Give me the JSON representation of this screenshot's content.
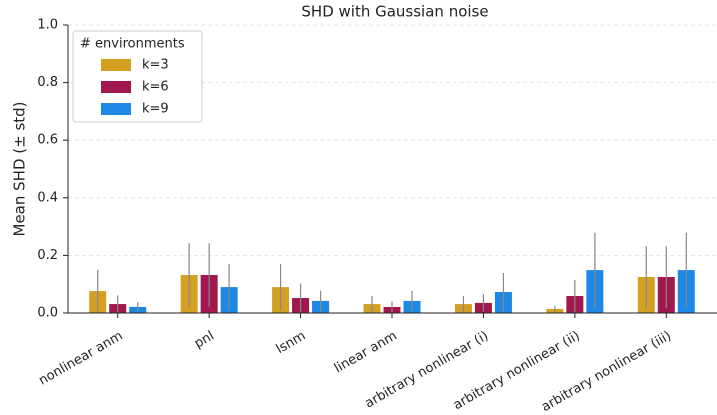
{
  "chart_data": {
    "type": "bar",
    "title": "SHD with Gaussian noise",
    "ylabel": "Mean SHD (± std)",
    "legend_title": "# environments",
    "legend": "upper left",
    "grid": true,
    "categories": [
      "nonlinear anm",
      "pnl",
      "lsnm",
      "linear anm",
      "arbitrary nonlinear (i)",
      "arbitrary nonlinear (ii)",
      "arbitrary nonlinear (iii)"
    ],
    "series": [
      {
        "name": "k=3",
        "color": "#d4a024",
        "values": [
          0.076,
          0.132,
          0.09,
          0.031,
          0.031,
          0.014,
          0.125
        ],
        "errors": [
          0.074,
          0.11,
          0.08,
          0.028,
          0.028,
          0.01,
          0.108
        ]
      },
      {
        "name": "k=6",
        "color": "#a0184e",
        "values": [
          0.031,
          0.132,
          0.052,
          0.021,
          0.035,
          0.059,
          0.125
        ],
        "errors": [
          0.03,
          0.11,
          0.05,
          0.02,
          0.03,
          0.056,
          0.108
        ]
      },
      {
        "name": "k=9",
        "color": "#1e88e5",
        "values": [
          0.021,
          0.09,
          0.042,
          0.042,
          0.073,
          0.149,
          0.149
        ],
        "errors": [
          0.017,
          0.08,
          0.035,
          0.035,
          0.066,
          0.13,
          0.13
        ]
      }
    ],
    "ylim": [
      0,
      1
    ],
    "yticks": [
      {
        "value": 0,
        "label": "0.0"
      },
      0.2,
      0.4,
      0.6,
      0.8,
      {
        "value": 1,
        "label": "1.0"
      }
    ]
  }
}
